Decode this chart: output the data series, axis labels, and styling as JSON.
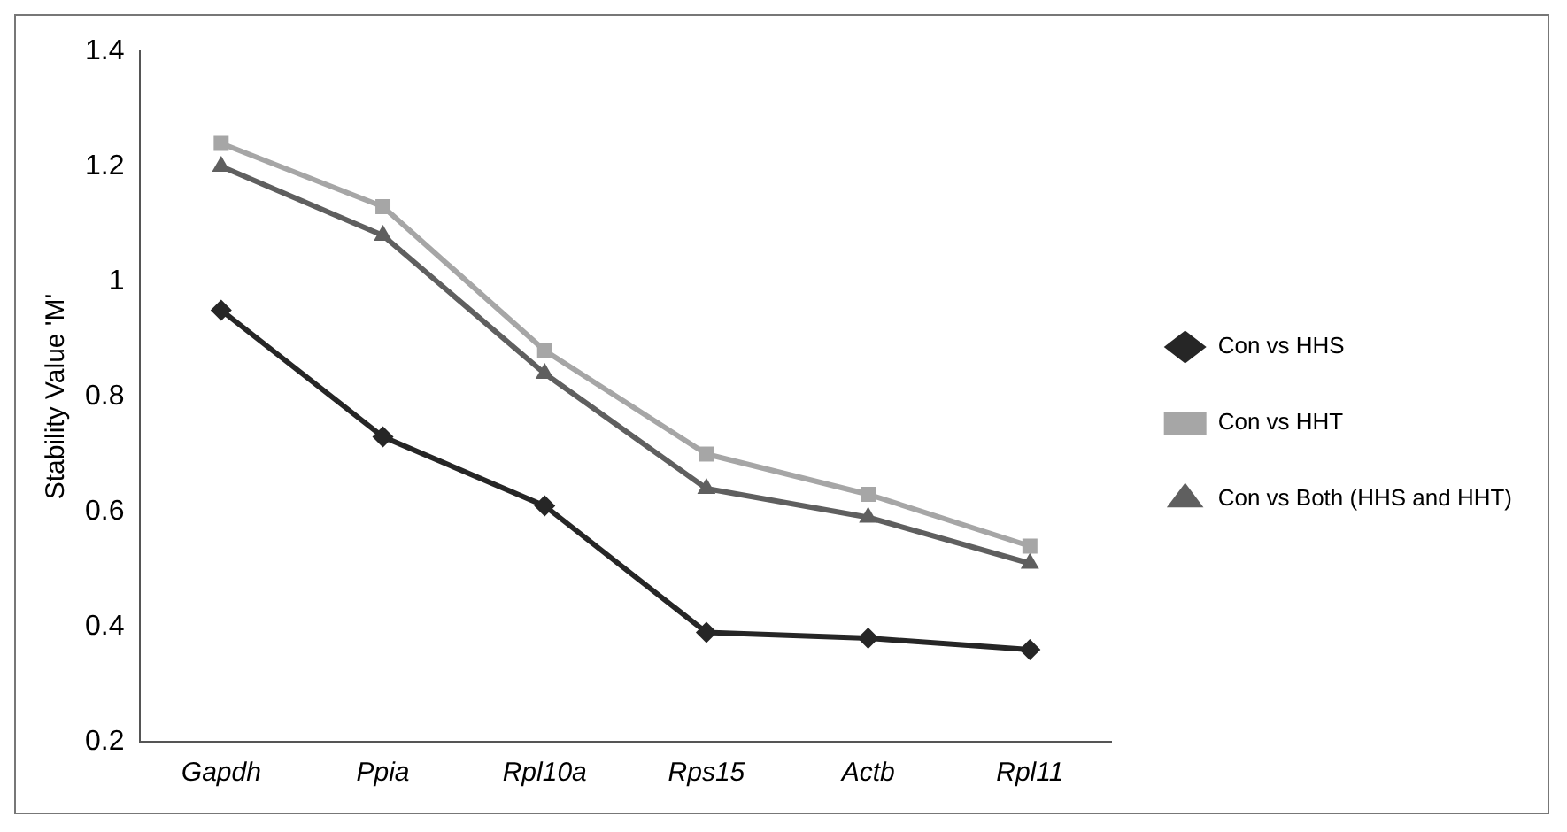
{
  "chart_data": {
    "type": "line",
    "ylabel": "Stability Value 'M'",
    "categories": [
      "Gapdh",
      "Ppia",
      "Rpl10a",
      "Rps15",
      "Actb",
      "Rpl11"
    ],
    "series": [
      {
        "name": "Con vs HHS",
        "color": "#262626",
        "marker": "diamond",
        "values": [
          0.95,
          0.73,
          0.61,
          0.39,
          0.38,
          0.36
        ]
      },
      {
        "name": "Con vs HHT",
        "color": "#a6a6a6",
        "marker": "square",
        "values": [
          1.24,
          1.13,
          0.88,
          0.7,
          0.63,
          0.54
        ]
      },
      {
        "name": "Con vs Both (HHS and HHT)",
        "color": "#5f5f5f",
        "marker": "triangle",
        "values": [
          1.2,
          1.08,
          0.84,
          0.64,
          0.59,
          0.51
        ]
      }
    ],
    "ylim": [
      0.2,
      1.4
    ],
    "yticks": [
      0.2,
      0.4,
      0.6,
      0.8,
      1,
      1.2,
      1.4
    ],
    "grid": false,
    "legend": "right",
    "line_style": "solid"
  }
}
